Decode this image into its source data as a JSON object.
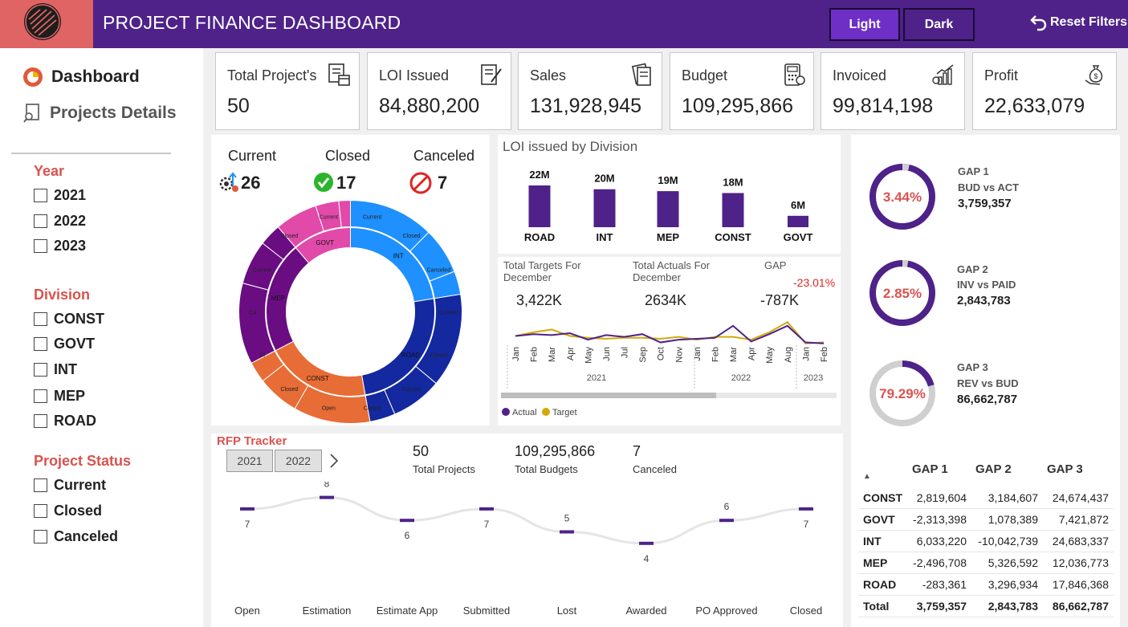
{
  "header": {
    "title": "PROJECT FINANCE DASHBOARD",
    "light_label": "Light",
    "dark_label": "Dark",
    "reset_label": "Reset Filters"
  },
  "nav": {
    "dashboard": "Dashboard",
    "projects_details": "Projects Details"
  },
  "filters": {
    "year": {
      "title": "Year",
      "options": [
        "2021",
        "2022",
        "2023"
      ]
    },
    "division": {
      "title": "Division",
      "options": [
        "CONST",
        "GOVT",
        "INT",
        "MEP",
        "ROAD"
      ]
    },
    "status": {
      "title": "Project Status",
      "options": [
        "Current",
        "Closed",
        "Canceled"
      ]
    }
  },
  "kpis": [
    {
      "label": "Total Project's",
      "value": "50",
      "icon": "checklist-calendar-icon"
    },
    {
      "label": "LOI Issued",
      "value": "84,880,200",
      "icon": "document-signing-icon"
    },
    {
      "label": "Sales",
      "value": "131,928,945",
      "icon": "invoice-icon"
    },
    {
      "label": "Budget",
      "value": "109,295,866",
      "icon": "calculator-budget-icon"
    },
    {
      "label": "Invoiced",
      "value": "99,814,198",
      "icon": "bar-growth-icon"
    },
    {
      "label": "Profit",
      "value": "22,633,079",
      "icon": "money-bag-hand-icon"
    }
  ],
  "status_summary": {
    "current_label": "Current",
    "current_value": "26",
    "closed_label": "Closed",
    "closed_value": "17",
    "canceled_label": "Canceled",
    "canceled_value": "7"
  },
  "sunburst": {
    "inner": [
      {
        "label": "INT",
        "value": 20,
        "color": "#1e90ff"
      },
      {
        "label": "ROAD",
        "value": 22,
        "color": "#1428a0"
      },
      {
        "label": "CONST",
        "value": 18,
        "color": "#e86c35"
      },
      {
        "label": "MEP",
        "value": 19,
        "color": "#6a0d83"
      },
      {
        "label": "GOVT",
        "value": 10,
        "color": "#e14aa8"
      }
    ],
    "outer_labels": [
      "Current",
      "Closed",
      "Canceled",
      "Current",
      "Closed",
      "Current",
      "Closed",
      "Open",
      "Closed",
      "Cl",
      "Ca",
      "Current",
      "Closed",
      "Current"
    ]
  },
  "loi_chart": {
    "title": "LOI issued by Division",
    "chart_data": {
      "type": "bar",
      "categories": [
        "ROAD",
        "INT",
        "MEP",
        "CONST",
        "GOVT"
      ],
      "values": [
        22,
        20,
        19,
        18,
        6
      ],
      "labels": [
        "22M",
        "20M",
        "19M",
        "18M",
        "6M"
      ],
      "color": "#4e2289"
    }
  },
  "targets": {
    "targets_label": "Total Targets For December",
    "targets_value": "3,422K",
    "actuals_label": "Total Actuals For December",
    "actuals_value": "2634K",
    "gap_label": "GAP",
    "gap_pct": "-23.01%",
    "gap_value": "-787K",
    "chart_data": {
      "type": "line",
      "x": [
        "Jan",
        "Feb",
        "Mar",
        "Apr",
        "May",
        "Jun",
        "Jul",
        "Sep",
        "Oct",
        "Nov",
        "Jan",
        "Feb",
        "Mar",
        "Apr",
        "May",
        "Aug",
        "Jan",
        "Feb"
      ],
      "years": [
        "2021",
        "2022",
        "2023"
      ],
      "series": [
        {
          "name": "Actual",
          "color": "#4e2289",
          "values": [
            10,
            12,
            11,
            13,
            6,
            11,
            9,
            12,
            3,
            6,
            7,
            8,
            21,
            4,
            12,
            21,
            3,
            2
          ]
        },
        {
          "name": "Target",
          "color": "#d4a80a",
          "values": [
            10,
            14,
            17,
            10,
            8,
            7,
            8,
            8,
            7,
            9,
            6,
            9,
            9,
            6,
            14,
            25,
            2,
            3
          ]
        }
      ],
      "legend": "bottom-left"
    }
  },
  "gaps": [
    {
      "title": "GAP 1",
      "subtitle": "BUD vs ACT",
      "value": "3,759,357",
      "pct": "3.44%",
      "fraction": 0.0344
    },
    {
      "title": "GAP 2",
      "subtitle": "INV vs PAID",
      "value": "2,843,783",
      "pct": "2.85%",
      "fraction": 0.0285
    },
    {
      "title": "GAP 3",
      "subtitle": "REV vs BUD",
      "value": "86,662,787",
      "pct": "79.29%",
      "fraction": 0.7929
    }
  ],
  "gap_table": {
    "headers": [
      "GAP 1",
      "GAP 2",
      "GAP 3"
    ],
    "rows": [
      {
        "name": "CONST",
        "g1": "2,819,604",
        "g2": "3,184,607",
        "g3": "24,674,437"
      },
      {
        "name": "GOVT",
        "g1": "-2,313,398",
        "g2": "1,078,389",
        "g3": "7,421,872"
      },
      {
        "name": "INT",
        "g1": "6,033,220",
        "g2": "-10,042,739",
        "g3": "24,683,337"
      },
      {
        "name": "MEP",
        "g1": "-2,496,708",
        "g2": "5,326,592",
        "g3": "12,036,773"
      },
      {
        "name": "ROAD",
        "g1": "-283,361",
        "g2": "3,296,934",
        "g3": "17,846,368"
      }
    ],
    "total": {
      "name": "Total",
      "g1": "3,759,357",
      "g2": "2,843,783",
      "g3": "86,662,787"
    }
  },
  "rfp": {
    "title": "RFP Tracker",
    "years": [
      "2021",
      "2022"
    ],
    "total_projects_value": "50",
    "total_projects_label": "Total Projects",
    "total_budgets_value": "109,295,866",
    "total_budgets_label": "Total Budgets",
    "canceled_value": "7",
    "canceled_label": "Canceled",
    "chart_data": {
      "type": "line",
      "categories": [
        "Open",
        "Estimation",
        "Estimate App",
        "Submitted",
        "Lost",
        "Awarded",
        "PO Approved",
        "Closed"
      ],
      "values": [
        7,
        8,
        6,
        7,
        5,
        4,
        6,
        7
      ],
      "color": "#4e2289"
    }
  }
}
